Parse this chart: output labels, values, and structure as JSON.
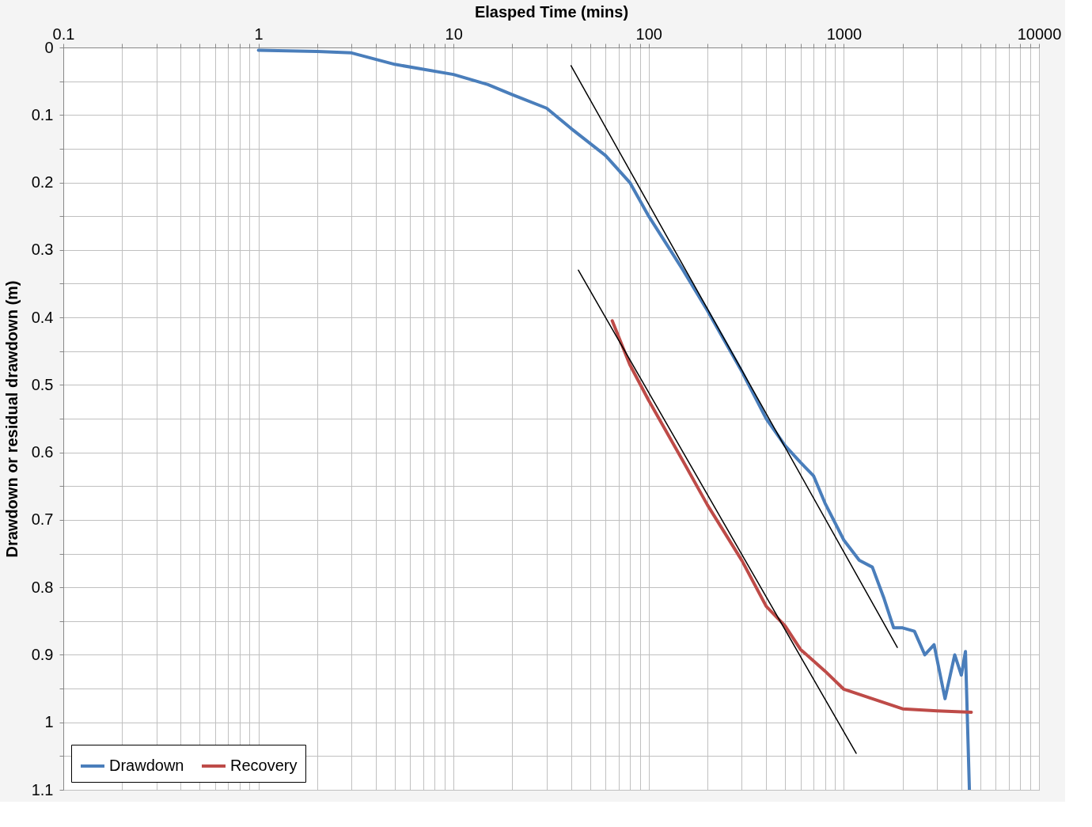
{
  "chart_data": {
    "type": "line",
    "xlabel": "Elasped Time (mins)",
    "ylabel": "Drawdown or residual drawdown (m)",
    "log": "x",
    "xlim": [
      0.1,
      10000
    ],
    "ylim": [
      1.1,
      0
    ],
    "xticks": [
      0.1,
      {
        "value": 0.2,
        "label": null
      },
      {
        "value": 0.3,
        "label": null
      },
      {
        "value": 0.4,
        "label": null
      },
      {
        "value": 0.5,
        "label": null
      },
      {
        "value": 0.6,
        "label": null
      },
      {
        "value": 0.7,
        "label": null
      },
      {
        "value": 0.8,
        "label": null
      },
      {
        "value": 0.9,
        "label": null
      },
      1,
      {
        "value": 2,
        "label": null
      },
      {
        "value": 3,
        "label": null
      },
      {
        "value": 4,
        "label": null
      },
      {
        "value": 5,
        "label": null
      },
      {
        "value": 6,
        "label": null
      },
      {
        "value": 7,
        "label": null
      },
      {
        "value": 8,
        "label": null
      },
      {
        "value": 9,
        "label": null
      },
      10,
      {
        "value": 20,
        "label": null
      },
      {
        "value": 30,
        "label": null
      },
      {
        "value": 40,
        "label": null
      },
      {
        "value": 50,
        "label": null
      },
      {
        "value": 60,
        "label": null
      },
      {
        "value": 70,
        "label": null
      },
      {
        "value": 80,
        "label": null
      },
      {
        "value": 90,
        "label": null
      },
      100,
      {
        "value": 200,
        "label": null
      },
      {
        "value": 300,
        "label": null
      },
      {
        "value": 400,
        "label": null
      },
      {
        "value": 500,
        "label": null
      },
      {
        "value": 600,
        "label": null
      },
      {
        "value": 700,
        "label": null
      },
      {
        "value": 800,
        "label": null
      },
      {
        "value": 900,
        "label": null
      },
      1000,
      {
        "value": 2000,
        "label": null
      },
      {
        "value": 3000,
        "label": null
      },
      {
        "value": 4000,
        "label": null
      },
      {
        "value": 5000,
        "label": null
      },
      {
        "value": 6000,
        "label": null
      },
      {
        "value": 7000,
        "label": null
      },
      {
        "value": 8000,
        "label": null
      },
      {
        "value": 9000,
        "label": null
      },
      10000
    ],
    "yticks": [
      0,
      {
        "value": 0.05,
        "label": null
      },
      0.1,
      {
        "value": 0.15,
        "label": null
      },
      0.2,
      {
        "value": 0.25,
        "label": null
      },
      0.3,
      {
        "value": 0.35,
        "label": null
      },
      0.4,
      {
        "value": 0.45,
        "label": null
      },
      0.5,
      {
        "value": 0.55,
        "label": null
      },
      0.6,
      {
        "value": 0.65,
        "label": null
      },
      0.7,
      {
        "value": 0.75,
        "label": null
      },
      0.8,
      {
        "value": 0.85,
        "label": null
      },
      0.9,
      {
        "value": 0.95,
        "label": null
      },
      1,
      {
        "value": 1.05,
        "label": null
      },
      1.1
    ],
    "grid": true,
    "legend": "bottom left",
    "marker": "none",
    "line_style": "solid",
    "series": [
      {
        "name": "Drawdown",
        "color": "#4a7ebb",
        "x": [
          1,
          2,
          3,
          5,
          10,
          15,
          20,
          30,
          40,
          60,
          80,
          100,
          150,
          200,
          300,
          400,
          500,
          600,
          700,
          800,
          1000,
          1200,
          1400,
          1600,
          1800,
          2000,
          2300,
          2600,
          2900,
          3300,
          3700,
          4000,
          4200,
          4400
        ],
        "values": [
          0.004,
          0.006,
          0.008,
          0.025,
          0.04,
          0.055,
          0.07,
          0.09,
          0.12,
          0.16,
          0.2,
          0.25,
          0.33,
          0.39,
          0.48,
          0.55,
          0.59,
          0.615,
          0.635,
          0.675,
          0.73,
          0.76,
          0.77,
          0.815,
          0.86,
          0.86,
          0.865,
          0.9,
          0.885,
          0.965,
          0.9,
          0.93,
          0.895,
          1.1
        ]
      },
      {
        "name": "Recovery",
        "color": "#be4b48",
        "x": [
          65,
          80,
          100,
          150,
          200,
          300,
          400,
          500,
          600,
          800,
          1000,
          1500,
          2000,
          3000,
          4500
        ],
        "values": [
          0.405,
          0.47,
          0.523,
          0.613,
          0.678,
          0.76,
          0.828,
          0.857,
          0.892,
          0.924,
          0.951,
          0.968,
          0.98,
          0.983,
          0.985
        ]
      },
      {
        "type": "line",
        "color": "#000000",
        "x": [
          40,
          1880
        ],
        "values": [
          0.027,
          0.889
        ]
      },
      {
        "type": "line",
        "color": "#000000",
        "x": [
          43.6,
          1157
        ],
        "values": [
          0.33,
          1.046
        ]
      }
    ]
  }
}
